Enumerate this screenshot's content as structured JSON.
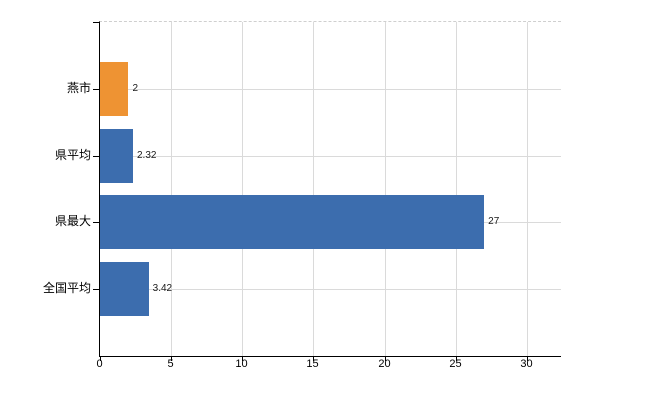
{
  "chart_data": {
    "type": "bar",
    "orientation": "horizontal",
    "title": "",
    "xlabel": "",
    "ylabel": "",
    "categories": [
      "燕市",
      "県平均",
      "県最大",
      "全国平均"
    ],
    "values": [
      2,
      2.32,
      27,
      3.42
    ],
    "value_labels": [
      "2",
      "2.32",
      "27",
      "3.42"
    ],
    "bar_colors": [
      "#ee9333",
      "#3c6dae",
      "#3c6dae",
      "#3c6dae"
    ],
    "xlim": [
      0,
      32.4
    ],
    "xticks": [
      0,
      5,
      10,
      15,
      20,
      25,
      30
    ],
    "xtick_labels": [
      "0",
      "5",
      "10",
      "15",
      "20",
      "25",
      "30"
    ],
    "grid": true,
    "legend": false
  },
  "colors": {
    "background": "#ffffff",
    "axis": "#000000",
    "gridline": "#dadada",
    "plot_top_border": "#cfcfcf",
    "tick_label": "#000000",
    "value_label": "#1a1a1a"
  }
}
